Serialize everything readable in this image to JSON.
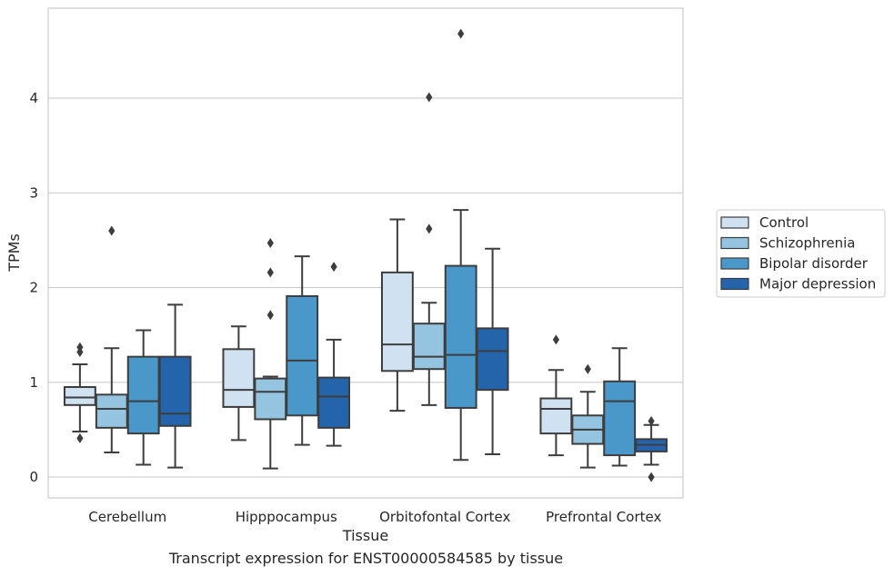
{
  "caption": "Transcript expression for ENST00000584585 by tissue",
  "chart_data": {
    "type": "boxplot",
    "xlabel": "Tissue",
    "ylabel": "TPMs",
    "ylim": [
      -0.22,
      4.95
    ],
    "yticks": [
      0,
      1,
      2,
      3,
      4
    ],
    "grid": "horizontal",
    "legend_position": "right",
    "categories": [
      "Cerebellum",
      "Hipppocampus",
      "Orbitofontal Cortex",
      "Prefrontal Cortex"
    ],
    "series": [
      {
        "name": "Control",
        "color": "#d0e1f2",
        "boxes": [
          {
            "whislo": 0.48,
            "q1": 0.76,
            "med": 0.84,
            "q3": 0.95,
            "whishi": 1.19,
            "fliers": [
              0.41,
              1.32,
              1.37
            ]
          },
          {
            "whislo": 0.39,
            "q1": 0.74,
            "med": 0.92,
            "q3": 1.35,
            "whishi": 1.59,
            "fliers": []
          },
          {
            "whislo": 0.7,
            "q1": 1.12,
            "med": 1.4,
            "q3": 2.16,
            "whishi": 2.72,
            "fliers": []
          },
          {
            "whislo": 0.23,
            "q1": 0.46,
            "med": 0.72,
            "q3": 0.83,
            "whishi": 1.13,
            "fliers": [
              1.45
            ]
          }
        ]
      },
      {
        "name": "Schizophrenia",
        "color": "#94c4df",
        "boxes": [
          {
            "whislo": 0.26,
            "q1": 0.52,
            "med": 0.72,
            "q3": 0.87,
            "whishi": 1.36,
            "fliers": [
              2.6
            ]
          },
          {
            "whislo": 0.09,
            "q1": 0.61,
            "med": 0.9,
            "q3": 1.04,
            "whishi": 1.06,
            "fliers": [
              1.71,
              2.16,
              2.47
            ]
          },
          {
            "whislo": 0.76,
            "q1": 1.14,
            "med": 1.27,
            "q3": 1.62,
            "whishi": 1.84,
            "fliers": [
              2.62,
              4.01
            ]
          },
          {
            "whislo": 0.1,
            "q1": 0.35,
            "med": 0.5,
            "q3": 0.65,
            "whishi": 0.9,
            "fliers": [
              1.14
            ]
          }
        ]
      },
      {
        "name": "Bipolar disorder",
        "color": "#4a98c9",
        "boxes": [
          {
            "whislo": 0.13,
            "q1": 0.46,
            "med": 0.8,
            "q3": 1.27,
            "whishi": 1.55,
            "fliers": []
          },
          {
            "whislo": 0.34,
            "q1": 0.65,
            "med": 1.23,
            "q3": 1.91,
            "whishi": 2.33,
            "fliers": []
          },
          {
            "whislo": 0.18,
            "q1": 0.73,
            "med": 1.29,
            "q3": 2.23,
            "whishi": 2.82,
            "fliers": [
              4.68
            ]
          },
          {
            "whislo": 0.12,
            "q1": 0.23,
            "med": 0.8,
            "q3": 1.01,
            "whishi": 1.36,
            "fliers": []
          }
        ]
      },
      {
        "name": "Major depression",
        "color": "#2464ab",
        "boxes": [
          {
            "whislo": 0.1,
            "q1": 0.54,
            "med": 0.67,
            "q3": 1.27,
            "whishi": 1.82,
            "fliers": []
          },
          {
            "whislo": 0.33,
            "q1": 0.52,
            "med": 0.85,
            "q3": 1.05,
            "whishi": 1.45,
            "fliers": [
              2.22
            ]
          },
          {
            "whislo": 0.24,
            "q1": 0.92,
            "med": 1.33,
            "q3": 1.57,
            "whishi": 2.41,
            "fliers": []
          },
          {
            "whislo": 0.13,
            "q1": 0.27,
            "med": 0.34,
            "q3": 0.4,
            "whishi": 0.55,
            "fliers": [
              0.0,
              0.59
            ]
          }
        ]
      }
    ]
  }
}
